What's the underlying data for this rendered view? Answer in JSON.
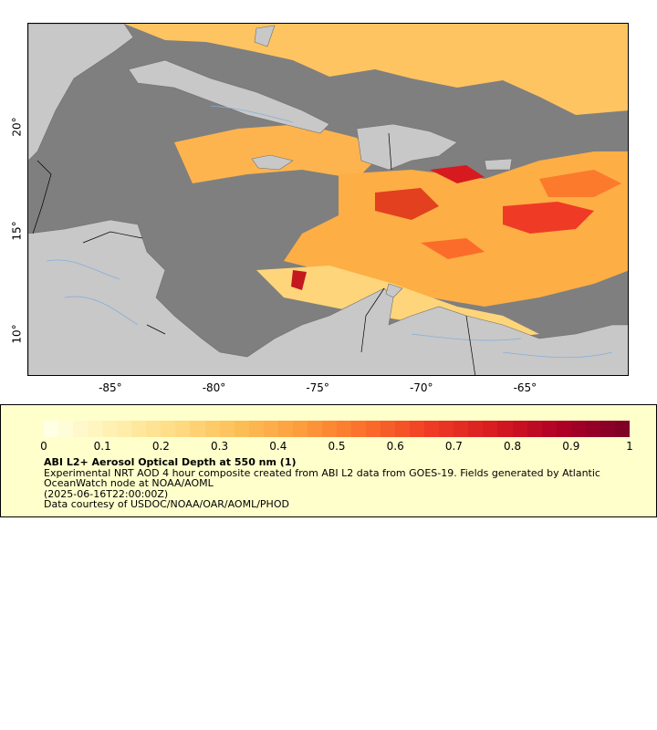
{
  "map": {
    "lon_ticks": [
      "-85°",
      "-80°",
      "-75°",
      "-70°",
      "-65°"
    ],
    "lat_ticks": [
      "20°",
      "15°",
      "10°"
    ],
    "lon_range": [
      -89,
      -60
    ],
    "lat_range": [
      8,
      25
    ],
    "colors": {
      "ocean": "#7f7f7f",
      "land": "#c8c8c8",
      "rivers": "#87aedb",
      "borders": "#000000"
    }
  },
  "legend": {
    "scale_ticks": [
      "0",
      "0.1",
      "0.2",
      "0.3",
      "0.4",
      "0.5",
      "0.6",
      "0.7",
      "0.8",
      "0.9",
      "1"
    ],
    "scale_range": [
      0,
      1
    ],
    "palette": [
      "#ffffe4",
      "#fff0b0",
      "#fedb82",
      "#fdbd55",
      "#fd9a3a",
      "#fb6c2a",
      "#ef3b25",
      "#d71a20",
      "#b00026",
      "#800026"
    ],
    "title": "ABI L2+ Aerosol Optical Depth at 550 nm (1)",
    "description": "Experimental NRT AOD 4 hour composite created from ABI L2 data from GOES-19. Fields generated by Atlantic OceanWatch node at NOAA/AOML",
    "time": "(2025-06-16T22:00:00Z)",
    "credit": "Data courtesy of USDOC/NOAA/OAR/AOML/PHOD"
  }
}
